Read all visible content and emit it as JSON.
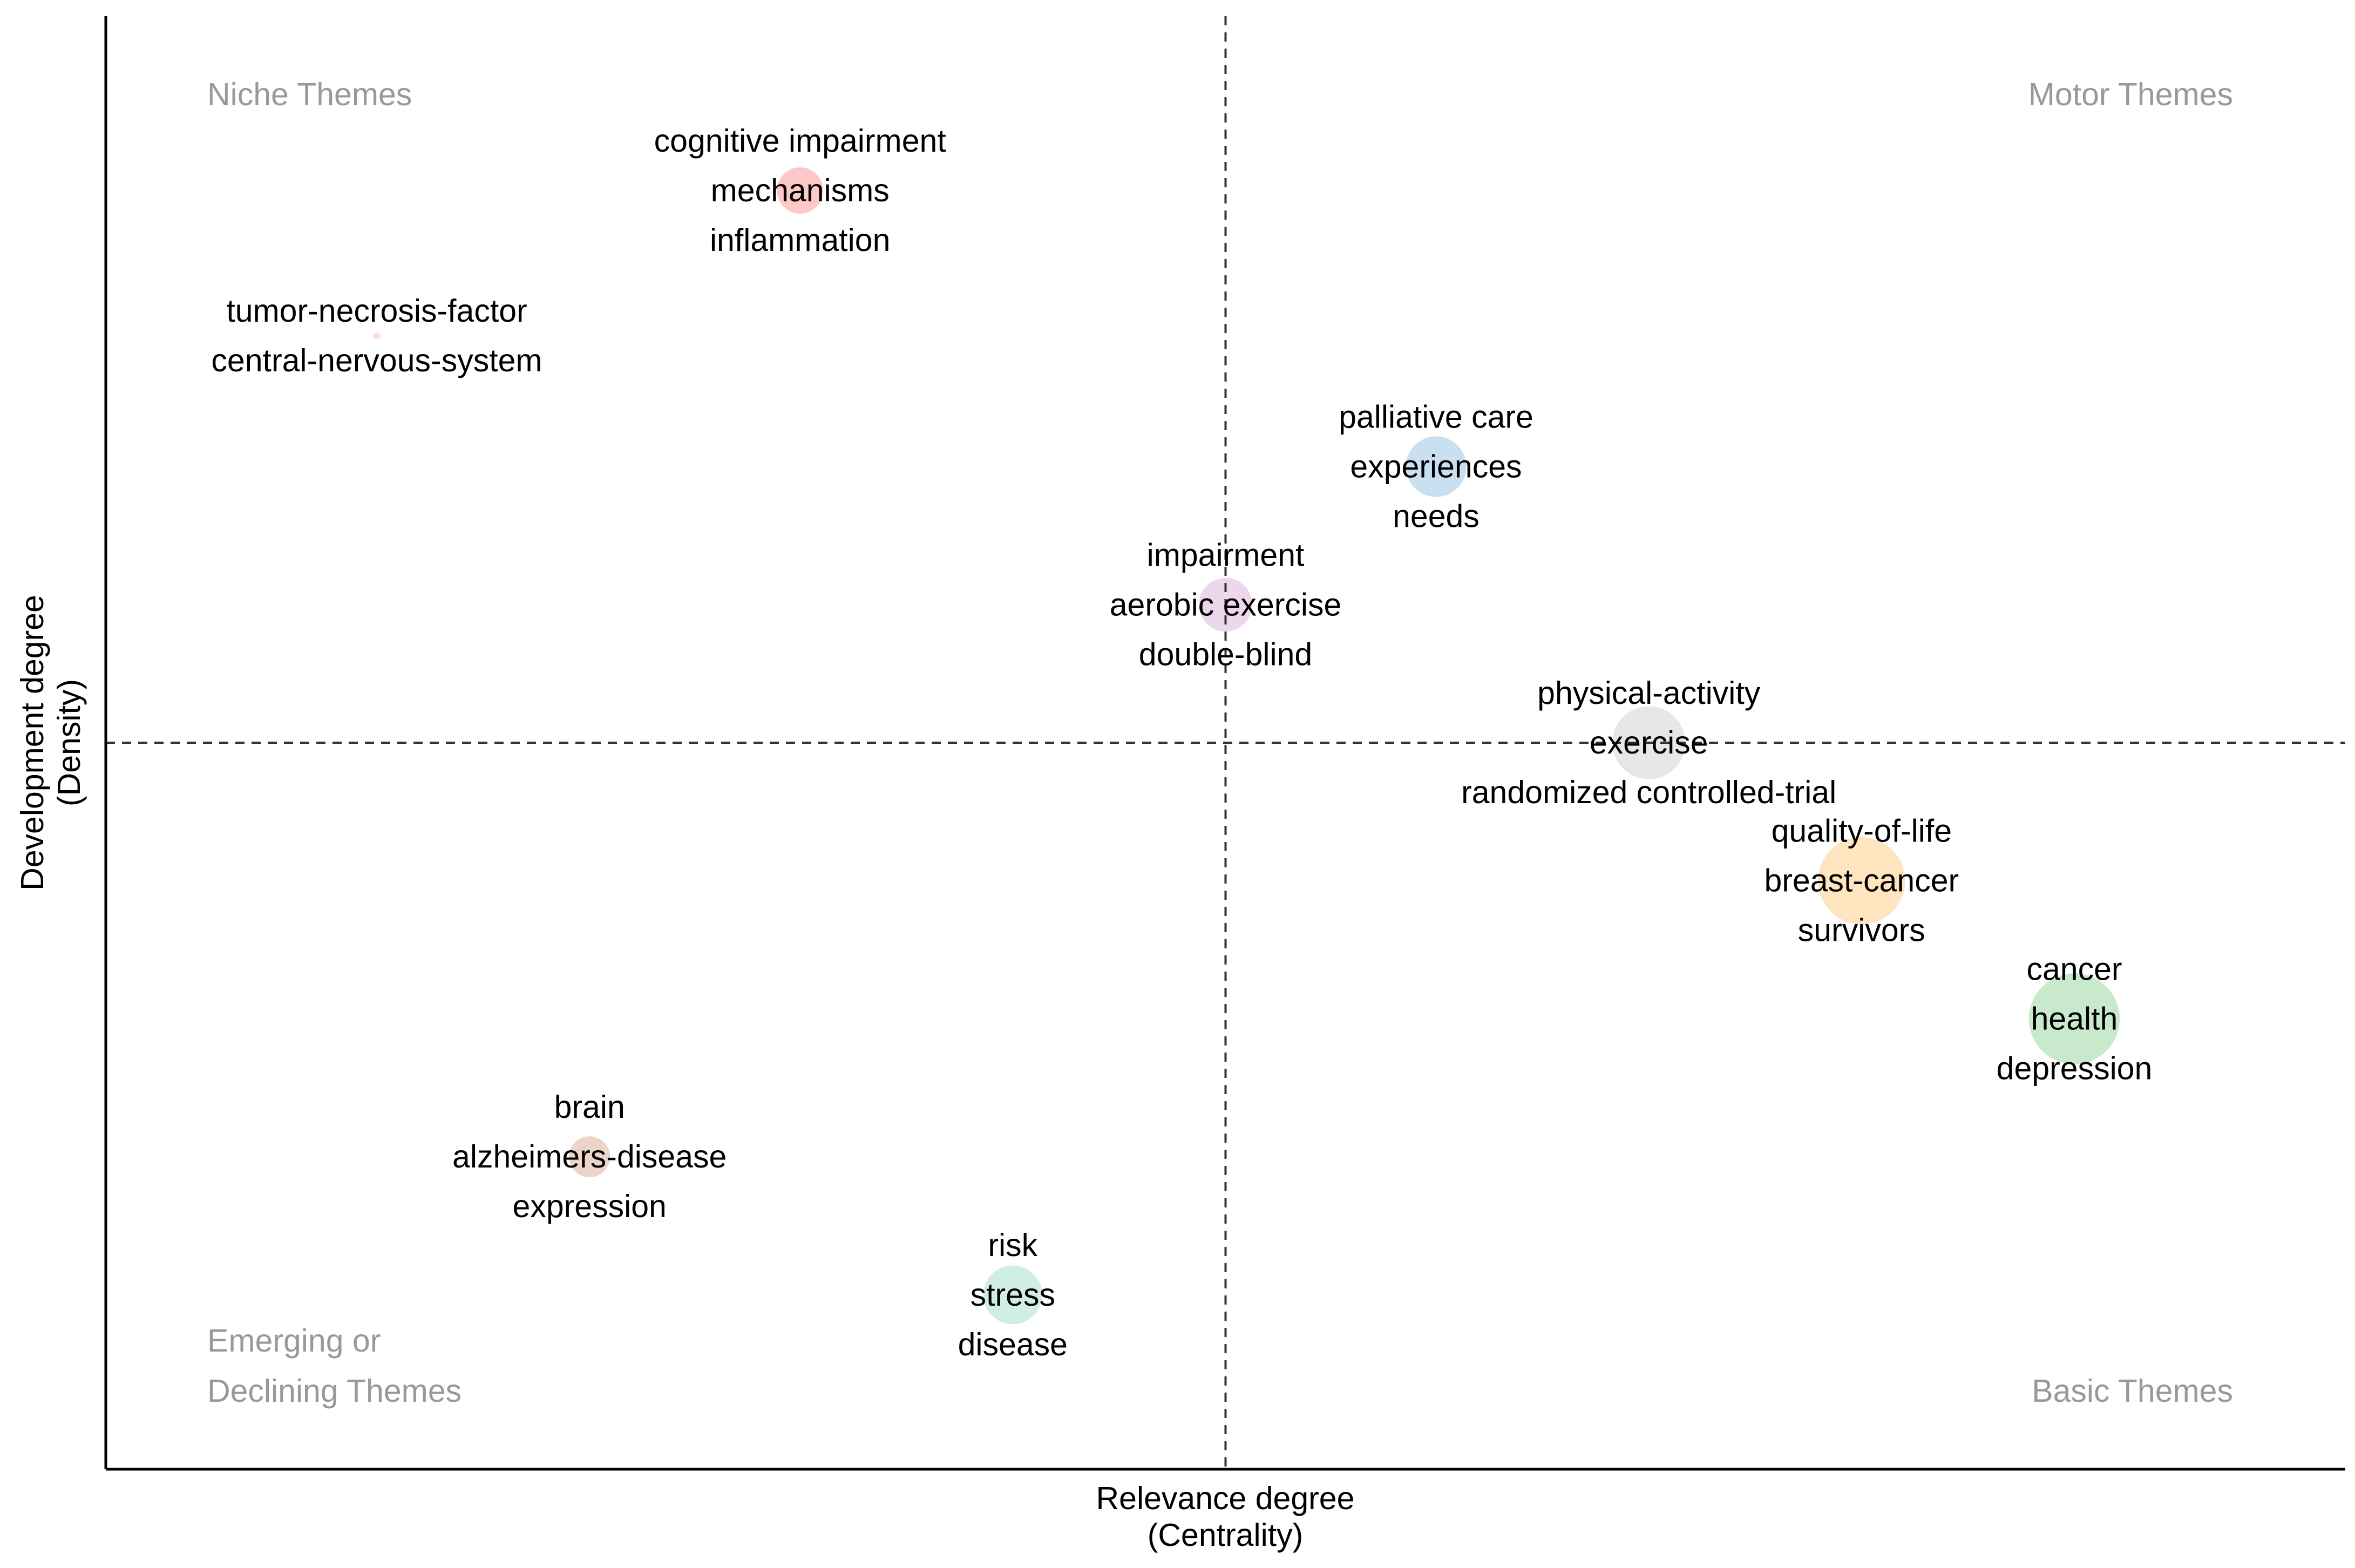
{
  "chart_data": {
    "type": "scatter",
    "subtype": "thematic-map",
    "xlabel": "Relevance degree",
    "xlabel_sub": "(Centrality)",
    "ylabel": "Development degree",
    "ylabel_sub": "(Density)",
    "xlim": [
      0,
      1
    ],
    "ylim": [
      0,
      1
    ],
    "x_split": 0.5,
    "y_split": 0.5,
    "axis_ticks": false,
    "grid": false,
    "quadrant_labels": {
      "top_left": [
        "Niche Themes"
      ],
      "top_right": [
        "Motor Themes"
      ],
      "bottom_left": [
        "Emerging or",
        "Declining Themes"
      ],
      "bottom_right": [
        "Basic Themes"
      ]
    },
    "quadrant_label_color": "#999999",
    "clusters": [
      {
        "id": "cognitive-impairment",
        "x": 0.31,
        "y": 0.88,
        "size": 0.26,
        "color": "#FFB3B3",
        "words": [
          "cognitive impairment",
          "mechanisms",
          "inflammation"
        ]
      },
      {
        "id": "tumor-necrosis-factor",
        "x": 0.121,
        "y": 0.78,
        "size": 0.04,
        "color": "#FFCCE5",
        "words": [
          "tumor-necrosis-factor",
          "central-nervous-system"
        ]
      },
      {
        "id": "palliative-care",
        "x": 0.594,
        "y": 0.69,
        "size": 0.34,
        "color": "#B3D4EA",
        "words": [
          "palliative care",
          "experiences",
          "needs"
        ]
      },
      {
        "id": "impairment",
        "x": 0.5,
        "y": 0.595,
        "size": 0.3,
        "color": "#E5C8E5",
        "words": [
          "impairment",
          "aerobic exercise",
          "double-blind"
        ]
      },
      {
        "id": "physical-activity",
        "x": 0.689,
        "y": 0.5,
        "size": 0.41,
        "color": "#DEDEDE",
        "words": [
          "physical-activity",
          "exercise",
          "randomized controlled-trial"
        ]
      },
      {
        "id": "quality-of-life",
        "x": 0.784,
        "y": 0.405,
        "size": 0.49,
        "color": "#FFD9A8",
        "words": [
          "quality-of-life",
          "breast-cancer",
          "survivors"
        ]
      },
      {
        "id": "cancer",
        "x": 0.879,
        "y": 0.31,
        "size": 0.51,
        "color": "#B3E0B8",
        "words": [
          "cancer",
          "health",
          "depression"
        ]
      },
      {
        "id": "brain",
        "x": 0.216,
        "y": 0.215,
        "size": 0.23,
        "color": "#E6C4B3",
        "words": [
          "brain",
          "alzheimers-disease",
          "expression"
        ]
      },
      {
        "id": "risk",
        "x": 0.405,
        "y": 0.12,
        "size": 0.33,
        "color": "#BFE8DA",
        "words": [
          "risk",
          "stress",
          "disease"
        ]
      }
    ]
  }
}
